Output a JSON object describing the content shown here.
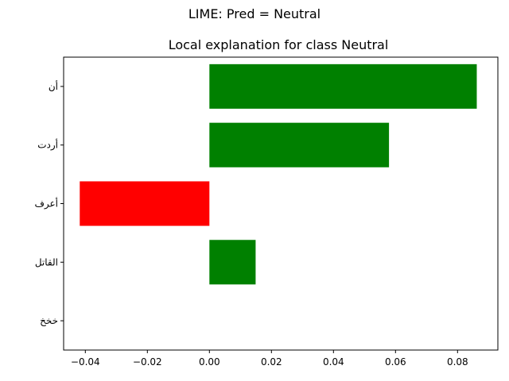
{
  "suptitle": "LIME: Pred = Neutral",
  "chart_data": {
    "type": "bar",
    "orientation": "horizontal",
    "title": "Local explanation for class Neutral",
    "xlabel": "",
    "ylabel": "",
    "categories": [
      "أن",
      "أردت",
      "أعرف",
      "القاتل",
      "خخخ"
    ],
    "values": [
      0.0862,
      0.0579,
      -0.0418,
      0.0149,
      0.0
    ],
    "xlim": [
      -0.047,
      0.093
    ],
    "xticks": [
      -0.04,
      -0.02,
      0.0,
      0.02,
      0.04,
      0.06,
      0.08
    ],
    "xtick_labels": [
      "−0.04",
      "−0.02",
      "0.00",
      "0.02",
      "0.04",
      "0.06",
      "0.08"
    ],
    "grid": false,
    "colors": {
      "positive": "#008000",
      "negative": "#ff0000"
    }
  }
}
